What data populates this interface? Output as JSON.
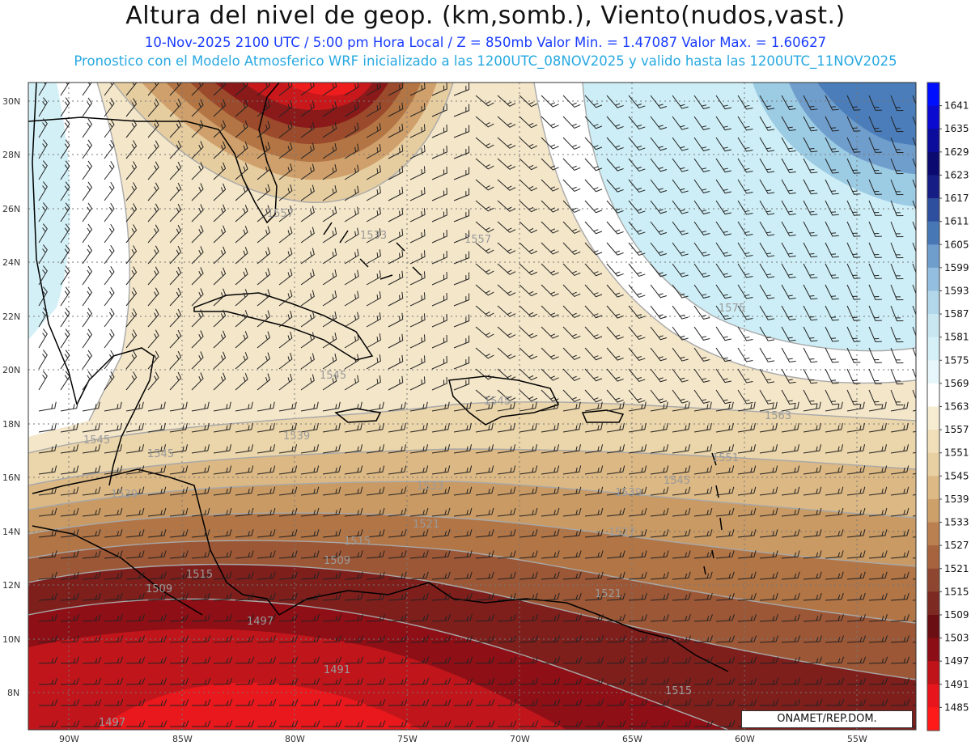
{
  "header": {
    "title": "Altura del nivel de geop. (km,somb.), Viento(nudos,vast.)",
    "subtitle_time": "10-Nov-2025  2100 UTC / 5:00 pm Hora Local / Z = 850mb     Valor Min. = 1.47087  Valor Max. = 1.60627",
    "subtitle_model": "Pronostico con el Modelo Atmosferico WRF inicializado a las 1200UTC_08NOV2025 y valido hasta las  1200UTC_11NOV2025"
  },
  "map": {
    "lat_labels": [
      "30N",
      "28N",
      "26N",
      "24N",
      "22N",
      "20N",
      "18N",
      "16N",
      "14N",
      "12N",
      "10N",
      "8N"
    ],
    "lon_labels": [
      "90W",
      "85W",
      "80W",
      "75W",
      "70W",
      "65W",
      "60W",
      "55W"
    ],
    "contour_labels": [
      "1557",
      "1533",
      "1533",
      "1545",
      "1545",
      "1539",
      "1557",
      "1545",
      "1539",
      "1563",
      "1551",
      "1545",
      "1539",
      "1533",
      "1527",
      "1521",
      "1515",
      "1515",
      "1509",
      "1509",
      "1497",
      "1491",
      "1521",
      "1515",
      "1497",
      "1575"
    ],
    "colors": {
      "deep_red": "#8a0d18",
      "red": "#c8181c",
      "brown": "#a65a3a",
      "tan": "#cf9f6a",
      "sand": "#efdcb6",
      "cream": "#f6ead2",
      "white": "#ffffff",
      "light_blue": "#c9ecf5",
      "blue": "#5f8fc4",
      "coast": "#000000"
    }
  },
  "colorbar": {
    "labels": [
      "1641",
      "1635",
      "1629",
      "1623",
      "1617",
      "1611",
      "1605",
      "1599",
      "1593",
      "1587",
      "1581",
      "1575",
      "1569",
      "1563",
      "1557",
      "1551",
      "1545",
      "1539",
      "1533",
      "1527",
      "1521",
      "1515",
      "1509",
      "1503",
      "1497",
      "1491",
      "1485"
    ],
    "colors": [
      "#0010ff",
      "#0a0ad0",
      "#0c0c9c",
      "#0a0a70",
      "#161e86",
      "#2e4e9e",
      "#4877b6",
      "#6f9ecd",
      "#94bedf",
      "#b2d6ea",
      "#c8e7f1",
      "#d6f0f7",
      "#e6f6fa",
      "#ffffff",
      "#f6ecd2",
      "#f0dfb8",
      "#e9d0a2",
      "#ddb985",
      "#cda06a",
      "#ba8050",
      "#a6633e",
      "#8f4630",
      "#7c2a22",
      "#6a0e14",
      "#8c0d16",
      "#c01319",
      "#e8161c",
      "#ff1a1a"
    ]
  },
  "credit": "ONAMET/REP.DOM."
}
